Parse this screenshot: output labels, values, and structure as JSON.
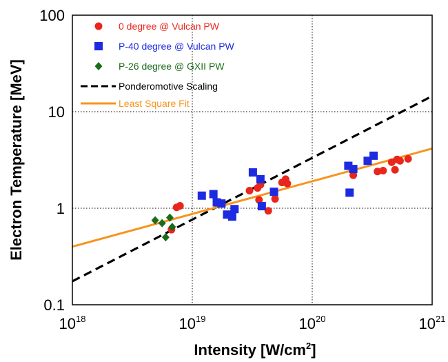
{
  "chart_data": {
    "type": "scatter",
    "xlabel": "Intensity [W/cm",
    "xlabel_sup": "2",
    "xlabel_end": "]",
    "ylabel": "Electron Temperature [MeV]",
    "x_scale": "log",
    "y_scale": "log",
    "xlim": [
      1e+18,
      1e+21
    ],
    "ylim": [
      0.1,
      100
    ],
    "grid": true,
    "legend_position": "top-left",
    "x_ticks": [
      {
        "value": 1e+18,
        "base": "10",
        "exp": "18"
      },
      {
        "value": 1e+19,
        "base": "10",
        "exp": "19"
      },
      {
        "value": 1e+20,
        "base": "10",
        "exp": "20"
      },
      {
        "value": 1e+21,
        "base": "10",
        "exp": "21"
      }
    ],
    "y_ticks": [
      {
        "value": 0.1,
        "label": "0.1"
      },
      {
        "value": 1,
        "label": "1"
      },
      {
        "value": 10,
        "label": "10"
      },
      {
        "value": 100,
        "label": "100"
      }
    ],
    "series": [
      {
        "name": "0      degree @ Vulcan PW",
        "marker": "circle",
        "color": "#e8261c",
        "points": [
          [
            6.7e+18,
            0.6
          ],
          [
            7.4e+18,
            1.02
          ],
          [
            7.9e+18,
            1.06
          ],
          [
            3e+19,
            1.52
          ],
          [
            3.5e+19,
            1.62
          ],
          [
            3.6e+19,
            1.22
          ],
          [
            3.7e+19,
            1.75
          ],
          [
            4.3e+19,
            0.94
          ],
          [
            4.9e+19,
            1.25
          ],
          [
            4.8e+19,
            1.45
          ],
          [
            5.6e+19,
            1.85
          ],
          [
            6e+19,
            2.0
          ],
          [
            6.2e+19,
            1.8
          ],
          [
            2.2e+20,
            2.2
          ],
          [
            3.5e+20,
            2.4
          ],
          [
            3.9e+20,
            2.45
          ],
          [
            4.6e+20,
            3.0
          ],
          [
            4.9e+20,
            2.5
          ],
          [
            5.1e+20,
            3.2
          ],
          [
            5.4e+20,
            3.1
          ],
          [
            6.3e+20,
            3.25
          ]
        ]
      },
      {
        "name": "P-40 degree @ Vulcan PW",
        "marker": "square",
        "color": "#1c2be0",
        "points": [
          [
            1.2e+19,
            1.35
          ],
          [
            1.5e+19,
            1.4
          ],
          [
            1.6e+19,
            1.15
          ],
          [
            1.75e+19,
            1.12
          ],
          [
            1.95e+19,
            0.86
          ],
          [
            2.15e+19,
            0.82
          ],
          [
            2.25e+19,
            0.98
          ],
          [
            3.2e+19,
            2.35
          ],
          [
            3.7e+19,
            2.0
          ],
          [
            3.8e+19,
            1.05
          ],
          [
            4.8e+19,
            1.48
          ],
          [
            2e+20,
            2.75
          ],
          [
            2.05e+20,
            1.45
          ],
          [
            2.2e+20,
            2.55
          ],
          [
            2.9e+20,
            3.1
          ],
          [
            3.25e+20,
            3.5
          ]
        ]
      },
      {
        "name": "P-26 degree @ GXII PW",
        "marker": "diamond",
        "color": "#1a6b1a",
        "points": [
          [
            4.9e+18,
            0.75
          ],
          [
            5.6e+18,
            0.7
          ],
          [
            6e+18,
            0.5
          ],
          [
            6.5e+18,
            0.8
          ],
          [
            6.8e+18,
            0.64
          ]
        ]
      },
      {
        "name": "Ponderomotive Scaling",
        "marker": "dashed-line",
        "color": "#000000",
        "points": [
          [
            1e+18,
            0.175
          ],
          [
            1e+21,
            14.5
          ]
        ]
      },
      {
        "name": "Least Square Fit",
        "marker": "line",
        "color": "#f7941d",
        "points": [
          [
            1e+18,
            0.4
          ],
          [
            1e+21,
            4.15
          ]
        ]
      }
    ]
  }
}
